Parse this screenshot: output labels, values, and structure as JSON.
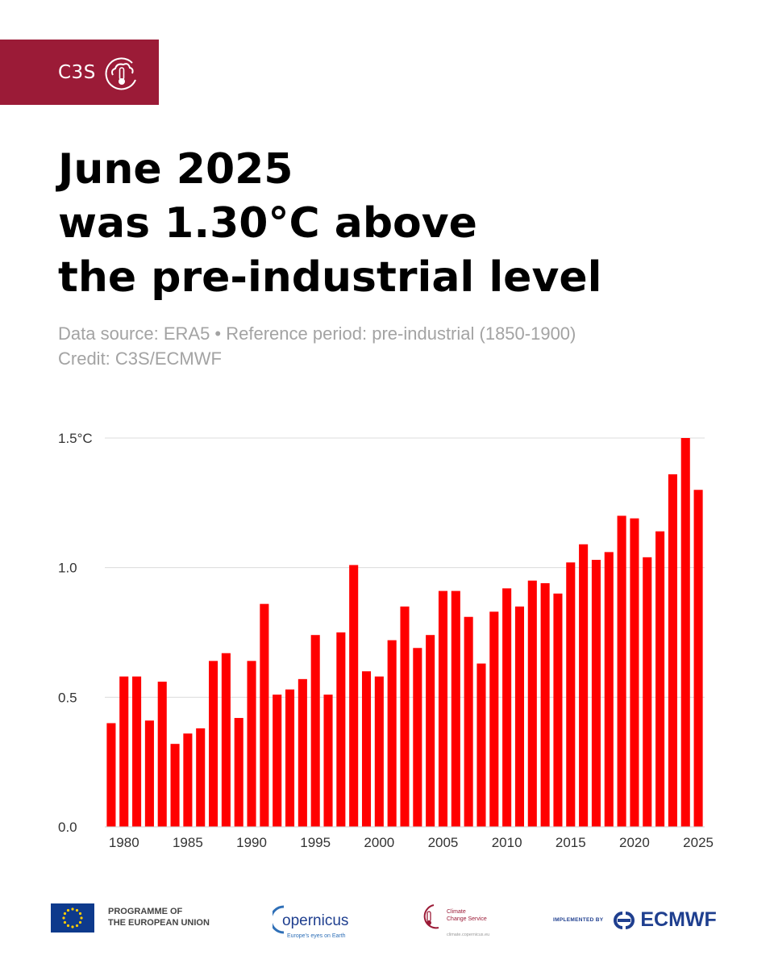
{
  "brand": {
    "label": "C3S",
    "color": "#9b1b37"
  },
  "title_lines": [
    "June 2025",
    "was 1.30°C above",
    "the pre-industrial level"
  ],
  "subtitle": {
    "source": "Data source: ERA5 • Reference period: pre-industrial (1850-1900)",
    "credit": "Credit: C3S/ECMWF"
  },
  "chart_data": {
    "type": "bar",
    "title": "June 2025 was 1.30°C above the pre-industrial level",
    "xlabel": "",
    "ylabel": "",
    "bar_color": "#ff0000",
    "ylim": [
      0,
      1.5
    ],
    "yticks": [
      0.0,
      0.5,
      1.0,
      1.5
    ],
    "ytick_labels": [
      "0.0",
      "0.5",
      "1.0",
      "1.5°C"
    ],
    "xticks": [
      1980,
      1985,
      1990,
      1995,
      2000,
      2005,
      2010,
      2015,
      2020,
      2025
    ],
    "categories": [
      1979,
      1980,
      1981,
      1982,
      1983,
      1984,
      1985,
      1986,
      1987,
      1988,
      1989,
      1990,
      1991,
      1992,
      1993,
      1994,
      1995,
      1996,
      1997,
      1998,
      1999,
      2000,
      2001,
      2002,
      2003,
      2004,
      2005,
      2006,
      2007,
      2008,
      2009,
      2010,
      2011,
      2012,
      2013,
      2014,
      2015,
      2016,
      2017,
      2018,
      2019,
      2020,
      2021,
      2022,
      2023,
      2024,
      2025
    ],
    "values": [
      0.4,
      0.58,
      0.58,
      0.41,
      0.56,
      0.32,
      0.36,
      0.38,
      0.64,
      0.67,
      0.42,
      0.64,
      0.86,
      0.51,
      0.53,
      0.57,
      0.74,
      0.51,
      0.75,
      1.01,
      0.6,
      0.58,
      0.72,
      0.85,
      0.69,
      0.74,
      0.91,
      0.91,
      0.81,
      0.63,
      0.83,
      0.92,
      0.85,
      0.95,
      0.94,
      0.9,
      1.02,
      1.09,
      1.03,
      1.06,
      1.2,
      1.19,
      1.04,
      1.14,
      1.36,
      1.5,
      1.3
    ]
  },
  "footer": {
    "eu_line1": "PROGRAMME OF",
    "eu_line2": "THE EUROPEAN UNION",
    "copernicus_name": "opernicus",
    "copernicus_tagline": "Europe's eyes on Earth",
    "ccs_line1": "Climate",
    "ccs_line2": "Change Service",
    "ccs_url": "climate.copernicus.eu",
    "implemented_by": "IMPLEMENTED BY",
    "ecmwf": "ECMWF"
  }
}
